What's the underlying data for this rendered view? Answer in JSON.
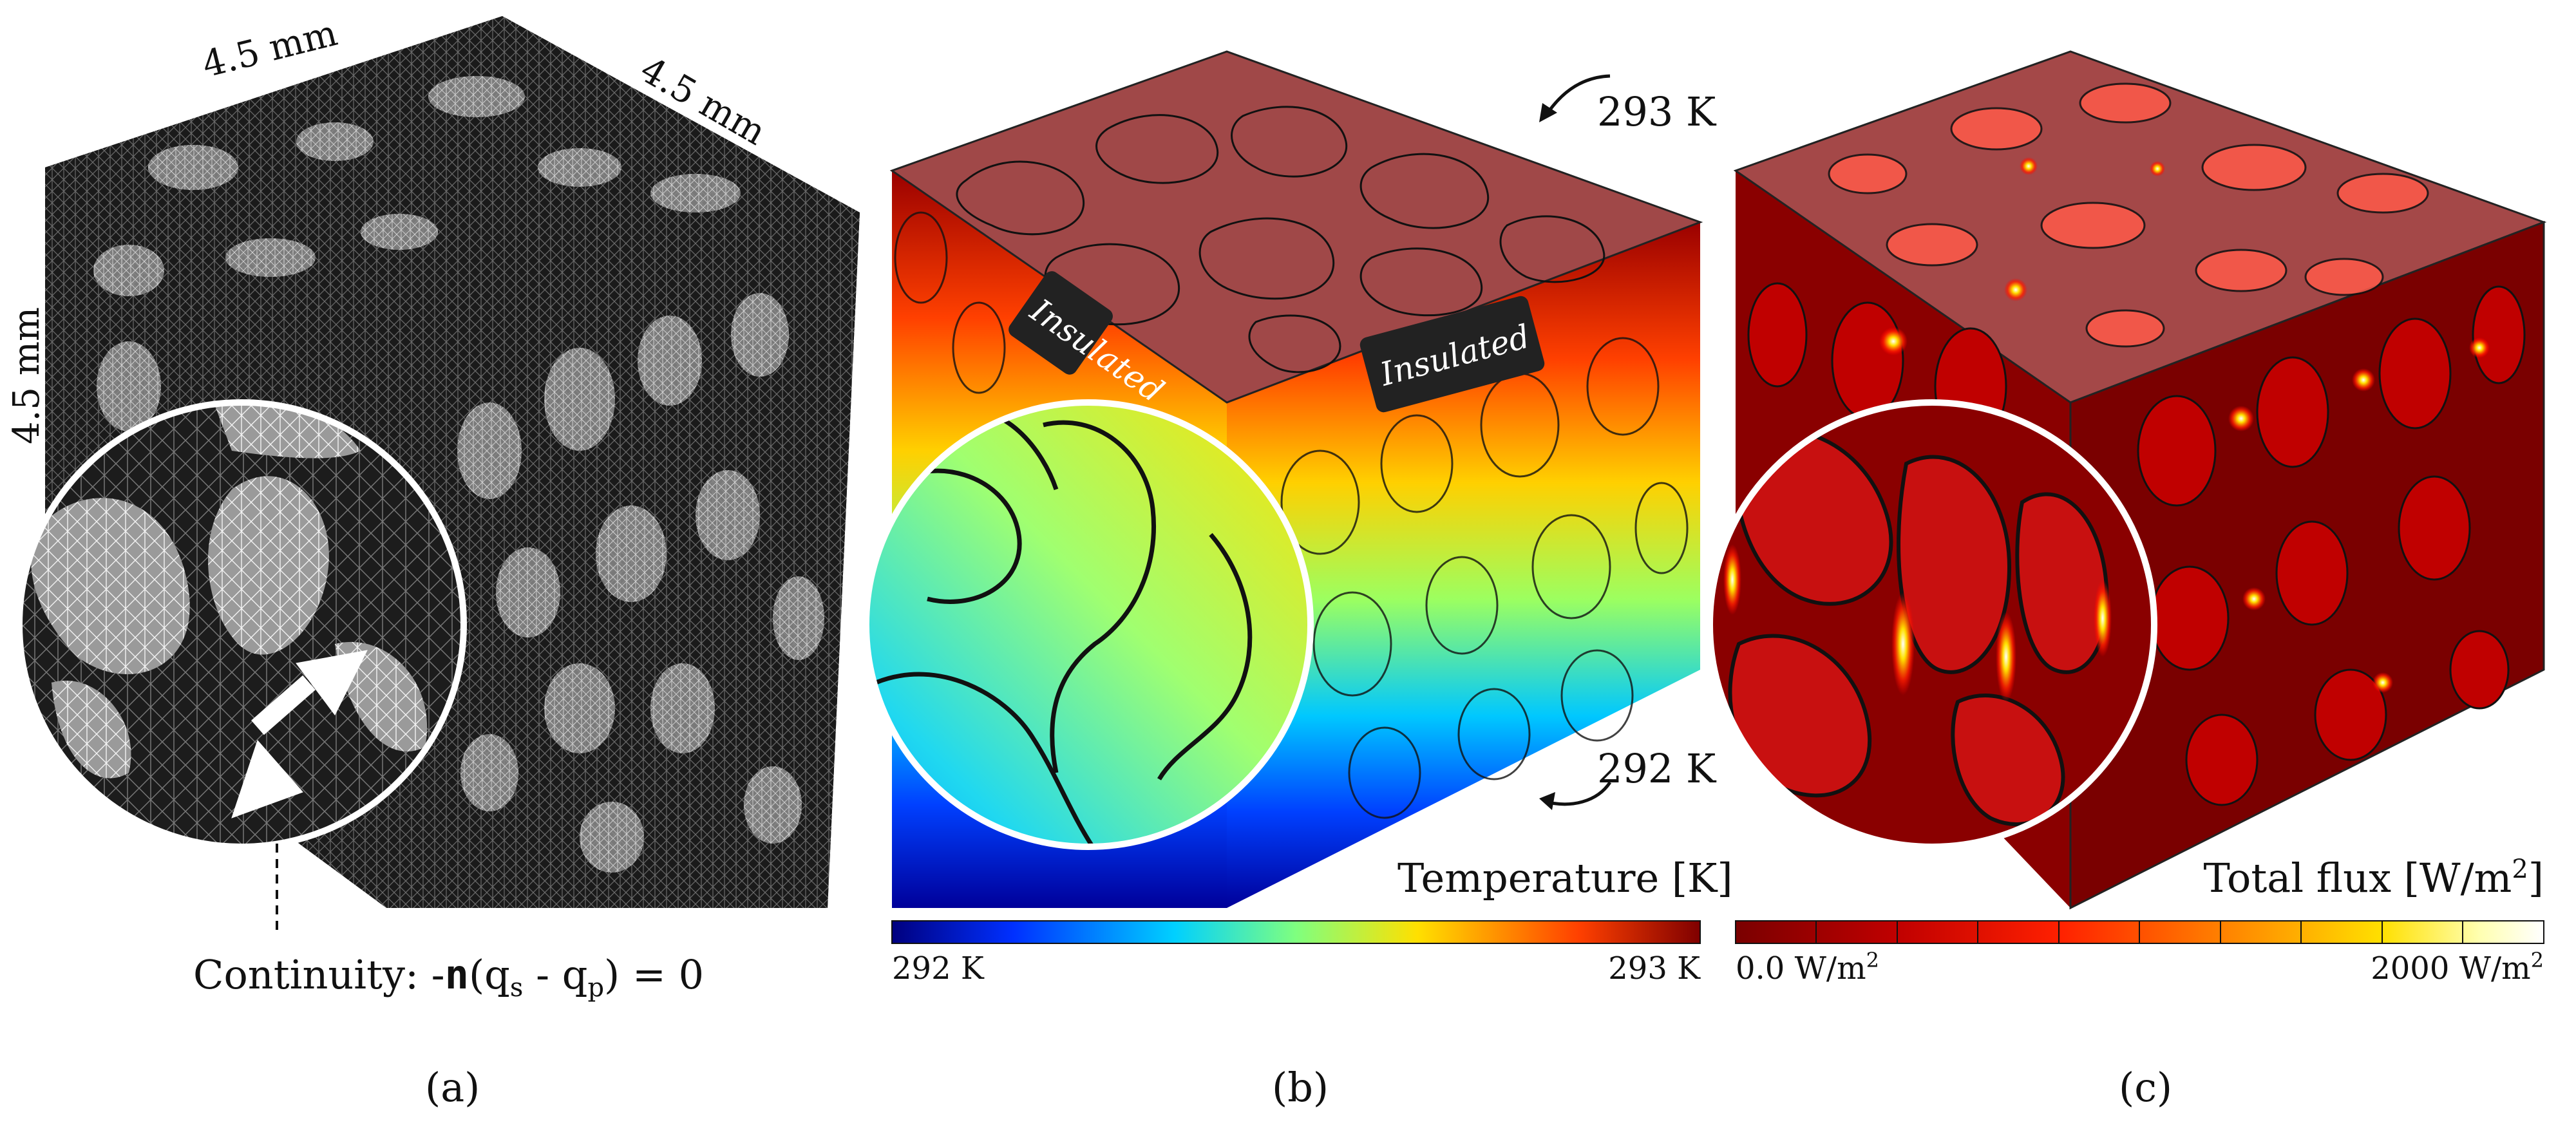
{
  "panel_a": {
    "dim_top": "4.5 mm",
    "dim_right": "4.5 mm",
    "dim_left": "4.5 mm",
    "continuity_prefix": "Continuity: -",
    "continuity_n": "n",
    "continuity_mid": "(q",
    "continuity_sub_s": "s",
    "continuity_minus": " - q",
    "continuity_sub_p": "p",
    "continuity_suffix": ") = 0",
    "caption": "(a)"
  },
  "panel_b": {
    "top_boundary": "293 K",
    "bottom_boundary": "292 K",
    "insulated_left": "Insulated",
    "insulated_right": "Insulated",
    "legend_title": "Temperature [K]",
    "colorbar_min": "292 K",
    "colorbar_max": "293 K",
    "caption": "(b)",
    "colormap": [
      "#00007f",
      "#0030ff",
      "#00d0ff",
      "#7fff7f",
      "#ffe000",
      "#ff4000",
      "#7f0000"
    ]
  },
  "panel_c": {
    "legend_title_prefix": "Total flux [W/m",
    "legend_title_sup": "2",
    "legend_title_suffix": "]",
    "colorbar_min_prefix": "0.0 W/m",
    "colorbar_min_sup": "2",
    "colorbar_max_prefix": "2000 W/m",
    "colorbar_max_sup": "2",
    "caption": "(c)",
    "colormap": [
      "#7a0000",
      "#c00000",
      "#ff2000",
      "#ff7a00",
      "#ffe000",
      "#ffffe0",
      "#ffffff"
    ]
  }
}
